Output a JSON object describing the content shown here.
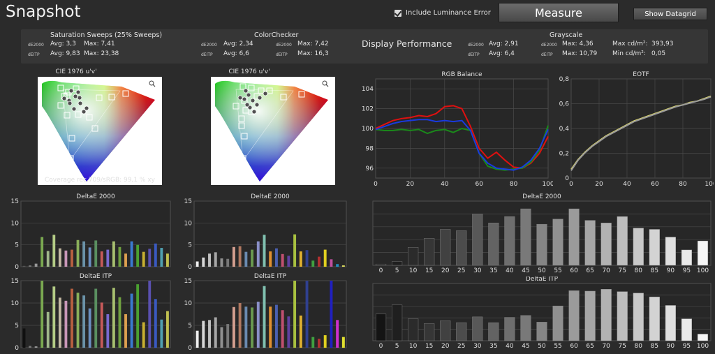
{
  "header": {
    "title": "Snapshot",
    "include_luminance_label": "Include Luminance Error",
    "measure_label": "Measure",
    "datagrid_label": "Show Datagrid"
  },
  "summary": {
    "sat": {
      "title": "Saturation Sweeps (25% Sweeps)",
      "k1": "dE2000",
      "k2": "dEITP",
      "avg1": "Avg: 3,3",
      "max1": "Max: 7,41",
      "avg2": "Avg: 9,83",
      "max2": "Max: 23,38"
    },
    "cc": {
      "title": "ColorChecker",
      "k1": "dE2000",
      "k2": "dEITP",
      "avg1": "Avg: 2,34",
      "max1": "Max: 7,42",
      "avg2": "Avg: 6,6",
      "max2": "Max: 16,3"
    },
    "display_performance": "Display Performance",
    "gs": {
      "title": "Grayscale",
      "k1": "dE2000",
      "k2": "dEITP",
      "avg1": "Avg: 2,91",
      "max1": "Max: 4,36",
      "avg2": "Avg: 6,4",
      "max2": "Max: 10,79",
      "maxcd_label": "Max cd/m²:",
      "maxcd": "393,93",
      "mincd_label": "Min cd/m²:",
      "mincd": "0,05"
    }
  },
  "cie": {
    "title1": "CIE 1976 u'v'",
    "title2": "CIE 1976 u'v'",
    "coverage": "Coverage rec.709/sRGB:  99,1 % xy",
    "zoom_icon": "magnifier-icon"
  },
  "chart_data": [
    {
      "type": "line",
      "title": "RGB Balance",
      "x": [
        0,
        5,
        10,
        15,
        20,
        25,
        30,
        35,
        40,
        45,
        50,
        55,
        60,
        65,
        70,
        75,
        80,
        85,
        90,
        95,
        100
      ],
      "xlim": [
        0,
        100
      ],
      "ylim": [
        95,
        105
      ],
      "yticks": [
        96,
        98,
        100,
        102,
        104
      ],
      "xticks": [
        0,
        20,
        40,
        60,
        80,
        100
      ],
      "series": [
        {
          "color": "#e01010",
          "values": [
            100,
            100.4,
            100.8,
            101,
            101.1,
            101.3,
            101.2,
            101.5,
            102.2,
            102.3,
            102,
            100.2,
            98,
            97,
            97.6,
            96.8,
            96.1,
            96,
            96.5,
            97.5,
            99.2
          ]
        },
        {
          "color": "#1a8a1a",
          "values": [
            99.9,
            99.8,
            99.8,
            99.9,
            99.8,
            99.9,
            99.5,
            99.8,
            99.9,
            99.6,
            100,
            99.8,
            97.5,
            96.2,
            95.9,
            95.8,
            95.9,
            96,
            96.6,
            97.8,
            100.3
          ]
        },
        {
          "color": "#1a3ae0",
          "values": [
            99.9,
            100.2,
            100.5,
            100.7,
            100.8,
            100.9,
            100.9,
            100.7,
            100.8,
            100.7,
            100.8,
            99.8,
            97.5,
            96.5,
            96,
            95.9,
            95.8,
            96.1,
            96.8,
            98,
            99.9
          ]
        }
      ]
    },
    {
      "type": "line",
      "title": "EOTF",
      "x": [
        0,
        5,
        10,
        15,
        20,
        25,
        30,
        35,
        40,
        45,
        50,
        55,
        60,
        65,
        70,
        75,
        80,
        85,
        90,
        95,
        100
      ],
      "xlim": [
        0,
        100
      ],
      "ylim": [
        0,
        0.8
      ],
      "yticks": [
        "0",
        "0,2",
        "0,4",
        "0,6",
        "0,8"
      ],
      "xticks": [
        0,
        20,
        40,
        60,
        80,
        100
      ],
      "series": [
        {
          "color": "#d8d46a",
          "values": [
            0.07,
            0.15,
            0.21,
            0.26,
            0.3,
            0.34,
            0.37,
            0.4,
            0.43,
            0.46,
            0.48,
            0.5,
            0.52,
            0.54,
            0.56,
            0.58,
            0.59,
            0.61,
            0.62,
            0.64,
            0.66
          ]
        },
        {
          "color": "#9a9a9a",
          "values": [
            0.06,
            0.145,
            0.205,
            0.255,
            0.295,
            0.335,
            0.365,
            0.395,
            0.425,
            0.455,
            0.475,
            0.495,
            0.515,
            0.535,
            0.555,
            0.575,
            0.59,
            0.605,
            0.62,
            0.635,
            0.655
          ]
        }
      ]
    },
    {
      "type": "bar",
      "title": "DeltaE 2000",
      "ylim": [
        0,
        15
      ],
      "yticks": [
        0,
        5,
        10,
        15
      ],
      "bars": [
        {
          "v": 0.2,
          "c": "#555"
        },
        {
          "v": 0.3,
          "c": "#777"
        },
        {
          "v": 0.7,
          "c": "#999"
        },
        {
          "v": 6.8,
          "c": "#7aa850"
        },
        {
          "v": 3.6,
          "c": "#9fb78a"
        },
        {
          "v": 7.3,
          "c": "#b4cc86"
        },
        {
          "v": 4.2,
          "c": "#c4b9a4"
        },
        {
          "v": 3.7,
          "c": "#c896b8"
        },
        {
          "v": 3.9,
          "c": "#b86040"
        },
        {
          "v": 6.1,
          "c": "#8ab05a"
        },
        {
          "v": 5.8,
          "c": "#6b92a8"
        },
        {
          "v": 4.4,
          "c": "#6a8fc0"
        },
        {
          "v": 6.0,
          "c": "#5a8f60"
        },
        {
          "v": 3.5,
          "c": "#c65a5a"
        },
        {
          "v": 3.9,
          "c": "#7a6ad0"
        },
        {
          "v": 5.8,
          "c": "#a8c070"
        },
        {
          "v": 4.5,
          "c": "#70a040"
        },
        {
          "v": 3.0,
          "c": "#dda050"
        },
        {
          "v": 5.8,
          "c": "#3a7ad0"
        },
        {
          "v": 5.0,
          "c": "#4aa030"
        },
        {
          "v": 3.4,
          "c": "#c8b030"
        },
        {
          "v": 4.1,
          "c": "#5a50b0"
        },
        {
          "v": 5.3,
          "c": "#3a5ac0"
        },
        {
          "v": 4.3,
          "c": "#50a0b0"
        },
        {
          "v": 3.0,
          "c": "#c0c050"
        }
      ]
    },
    {
      "type": "bar",
      "title": "DeltaE 2000",
      "ylim": [
        0,
        15
      ],
      "yticks": [
        0,
        5,
        10,
        15
      ],
      "bars": [
        {
          "v": 1.2,
          "c": "#f0f0f0"
        },
        {
          "v": 2.1,
          "c": "#d8d8d8"
        },
        {
          "v": 3.0,
          "c": "#c0c0c0"
        },
        {
          "v": 3.3,
          "c": "#a8a8a8"
        },
        {
          "v": 1.9,
          "c": "#909090"
        },
        {
          "v": 1.8,
          "c": "#787878"
        },
        {
          "v": 4.5,
          "c": "#d4a090"
        },
        {
          "v": 4.7,
          "c": "#b07860"
        },
        {
          "v": 3.4,
          "c": "#6a8ab0"
        },
        {
          "v": 3.9,
          "c": "#6a9a50"
        },
        {
          "v": 5.8,
          "c": "#8a90c8"
        },
        {
          "v": 7.3,
          "c": "#80c0b0"
        },
        {
          "v": 3.5,
          "c": "#e09030"
        },
        {
          "v": 4.2,
          "c": "#4a60b0"
        },
        {
          "v": 2.9,
          "c": "#c05070"
        },
        {
          "v": 2.5,
          "c": "#6040a0"
        },
        {
          "v": 7.4,
          "c": "#a8c040"
        },
        {
          "v": 3.5,
          "c": "#e0b030"
        },
        {
          "v": 3.8,
          "c": "#304090"
        },
        {
          "v": 1.4,
          "c": "#40a040"
        },
        {
          "v": 2.3,
          "c": "#b03030"
        },
        {
          "v": 3.9,
          "c": "#e0d020"
        },
        {
          "v": 1.7,
          "c": "#c050a0"
        },
        {
          "v": 0.6,
          "c": "#2090c0"
        },
        {
          "v": 0.3,
          "c": "#e0e060"
        }
      ]
    },
    {
      "type": "bar",
      "title": "DeltaE 2000",
      "categories": [
        "0",
        "5",
        "10",
        "15",
        "20",
        "25",
        "30",
        "35",
        "40",
        "45",
        "50",
        "55",
        "60",
        "65",
        "70",
        "75",
        "80",
        "85",
        "90",
        "95",
        "100"
      ],
      "ylim": [
        0,
        5
      ],
      "values": [
        0.1,
        0.3,
        1.4,
        2.1,
        2.8,
        2.7,
        4.0,
        3.3,
        3.8,
        4.4,
        3.2,
        3.6,
        4.4,
        3.5,
        3.3,
        3.8,
        2.9,
        2.8,
        2.2,
        1.2,
        1.9
      ]
    },
    {
      "type": "bar",
      "title": "DeltaE ITP",
      "ylim": [
        0,
        15
      ],
      "yticks": [
        0,
        5,
        10,
        15
      ],
      "bars": [
        {
          "v": 4.3,
          "c": "#101010"
        },
        {
          "v": 0.4,
          "c": "#777"
        },
        {
          "v": 0.3,
          "c": "#999"
        },
        {
          "v": 15.0,
          "c": "#7aa850"
        },
        {
          "v": 8.0,
          "c": "#9fb78a"
        },
        {
          "v": 13.7,
          "c": "#b4cc86"
        },
        {
          "v": 11.2,
          "c": "#c4b9a4"
        },
        {
          "v": 10.5,
          "c": "#c896b8"
        },
        {
          "v": 13.2,
          "c": "#b86040"
        },
        {
          "v": 12.3,
          "c": "#8ab05a"
        },
        {
          "v": 11.7,
          "c": "#6b92a8"
        },
        {
          "v": 8.8,
          "c": "#6a8fc0"
        },
        {
          "v": 13.2,
          "c": "#5a8f60"
        },
        {
          "v": 10.1,
          "c": "#c65a5a"
        },
        {
          "v": 7.5,
          "c": "#7a6ad0"
        },
        {
          "v": 13.4,
          "c": "#a8c070"
        },
        {
          "v": 11.3,
          "c": "#70a040"
        },
        {
          "v": 7.5,
          "c": "#dda050"
        },
        {
          "v": 12.1,
          "c": "#3a7ad0"
        },
        {
          "v": 14.2,
          "c": "#4aa030"
        },
        {
          "v": 5.7,
          "c": "#c8b030"
        },
        {
          "v": 15.0,
          "c": "#5a50b0"
        },
        {
          "v": 10.9,
          "c": "#3a5ac0"
        },
        {
          "v": 6.3,
          "c": "#50a0b0"
        },
        {
          "v": 8.2,
          "c": "#c0c050"
        }
      ]
    },
    {
      "type": "bar",
      "title": "DeltaE ITP",
      "ylim": [
        0,
        15
      ],
      "yticks": [
        0,
        5,
        10,
        15
      ],
      "bars": [
        {
          "v": 3.8,
          "c": "#f0f0f0"
        },
        {
          "v": 6.0,
          "c": "#d8d8d8"
        },
        {
          "v": 6.2,
          "c": "#c0c0c0"
        },
        {
          "v": 6.8,
          "c": "#a8a8a8"
        },
        {
          "v": 4.6,
          "c": "#909090"
        },
        {
          "v": 5.3,
          "c": "#787878"
        },
        {
          "v": 9.1,
          "c": "#d4a090"
        },
        {
          "v": 10.0,
          "c": "#b07860"
        },
        {
          "v": 9.2,
          "c": "#6a8ab0"
        },
        {
          "v": 9.0,
          "c": "#6a9a50"
        },
        {
          "v": 10.3,
          "c": "#8a90c8"
        },
        {
          "v": 13.8,
          "c": "#80c0b0"
        },
        {
          "v": 9.2,
          "c": "#e09030"
        },
        {
          "v": 9.6,
          "c": "#4a60b0"
        },
        {
          "v": 8.4,
          "c": "#c05070"
        },
        {
          "v": 7.0,
          "c": "#6040a0"
        },
        {
          "v": 15.0,
          "c": "#a8c040"
        },
        {
          "v": 7.2,
          "c": "#e0b030"
        },
        {
          "v": 15.0,
          "c": "#304090"
        },
        {
          "v": 2.4,
          "c": "#40a040"
        },
        {
          "v": 2.0,
          "c": "#b03030"
        },
        {
          "v": 2.8,
          "c": "#e0d020"
        },
        {
          "v": 15.0,
          "c": "#2020c0"
        },
        {
          "v": 6.2,
          "c": "#d030d0"
        },
        {
          "v": 2.4,
          "c": "#e0e030"
        }
      ]
    },
    {
      "type": "bar",
      "title": "DeltaE ITP",
      "categories": [
        "0",
        "5",
        "10",
        "15",
        "20",
        "25",
        "30",
        "35",
        "40",
        "45",
        "50",
        "55",
        "60",
        "65",
        "70",
        "75",
        "80",
        "85",
        "90",
        "95",
        "100"
      ],
      "ylim": [
        0,
        12
      ],
      "values": [
        5.6,
        7.5,
        4.6,
        3.6,
        4.2,
        3.8,
        5.0,
        3.8,
        4.9,
        5.3,
        3.9,
        7.3,
        10.5,
        10.4,
        10.8,
        10.3,
        10.0,
        9.2,
        7.4,
        4.6,
        1.4
      ]
    }
  ]
}
